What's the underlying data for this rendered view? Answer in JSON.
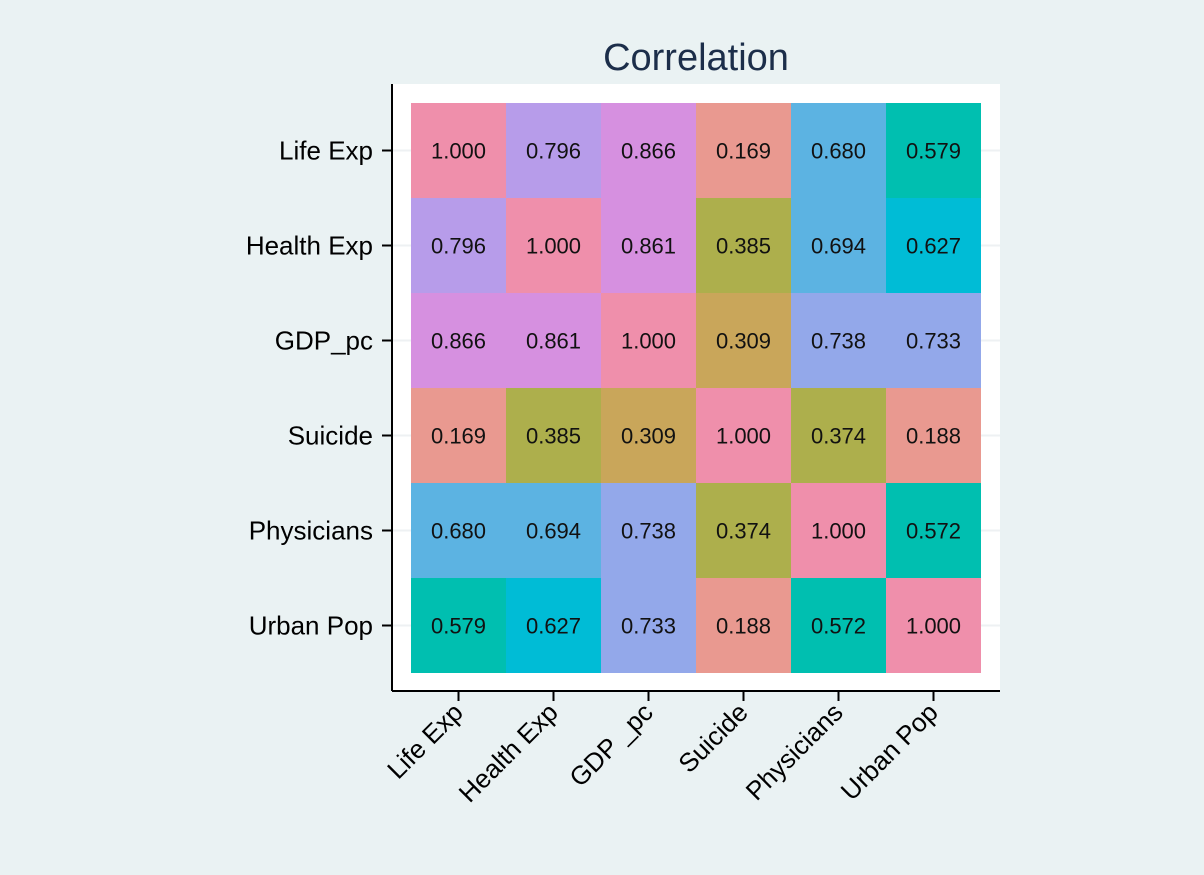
{
  "chart_data": {
    "type": "heatmap",
    "title": "Correlation",
    "xlabel": "",
    "ylabel": "",
    "variables": [
      "Life Exp",
      "Health Exp",
      "GDP_pc",
      "Suicide",
      "Physicians",
      "Urban Pop"
    ],
    "x_tick_labels": [
      "Life Exp",
      "Health Exp",
      "GDP _pc",
      "Suicide",
      "Physicians",
      "Urban Pop"
    ],
    "y_tick_labels": [
      "Life Exp",
      "Health Exp",
      "GDP_pc",
      "Suicide",
      "Physicians",
      "Urban Pop"
    ],
    "matrix": [
      [
        1.0,
        0.796,
        0.866,
        0.169,
        0.68,
        0.579
      ],
      [
        0.796,
        1.0,
        0.861,
        0.385,
        0.694,
        0.627
      ],
      [
        0.866,
        0.861,
        1.0,
        0.309,
        0.738,
        0.733
      ],
      [
        0.169,
        0.385,
        0.309,
        1.0,
        0.374,
        0.188
      ],
      [
        0.68,
        0.694,
        0.738,
        0.374,
        1.0,
        0.572
      ],
      [
        0.579,
        0.627,
        0.733,
        0.188,
        0.572,
        1.0
      ]
    ],
    "cell_labels": [
      [
        "1.000",
        "0.796",
        "0.866",
        "0.169",
        "0.680",
        "0.579"
      ],
      [
        "0.796",
        "1.000",
        "0.861",
        "0.385",
        "0.694",
        "0.627"
      ],
      [
        "0.866",
        "0.861",
        "1.000",
        "0.309",
        "0.738",
        "0.733"
      ],
      [
        "0.169",
        "0.385",
        "0.309",
        "1.000",
        "0.374",
        "0.188"
      ],
      [
        "0.680",
        "0.694",
        "0.738",
        "0.374",
        "1.000",
        "0.572"
      ],
      [
        "0.579",
        "0.627",
        "0.733",
        "0.188",
        "0.572",
        "1.000"
      ]
    ],
    "cell_colors": [
      [
        "#ef8fab",
        "#b79cea",
        "#d690e0",
        "#e99990",
        "#5cb3e2",
        "#00bfb0"
      ],
      [
        "#b79cea",
        "#ef8fab",
        "#d690e0",
        "#adaf4c",
        "#5cb3e2",
        "#00bcd6"
      ],
      [
        "#d690e0",
        "#d690e0",
        "#ef8fab",
        "#c9a65a",
        "#93a8ea",
        "#93a8ea"
      ],
      [
        "#e99990",
        "#adaf4c",
        "#c9a65a",
        "#ef8fab",
        "#adaf4c",
        "#e99990"
      ],
      [
        "#5cb3e2",
        "#5cb3e2",
        "#93a8ea",
        "#adaf4c",
        "#ef8fab",
        "#00bfb0"
      ],
      [
        "#00bfb0",
        "#00bcd6",
        "#93a8ea",
        "#e99990",
        "#00bfb0",
        "#ef8fab"
      ]
    ],
    "grid": true,
    "legend": "none"
  }
}
